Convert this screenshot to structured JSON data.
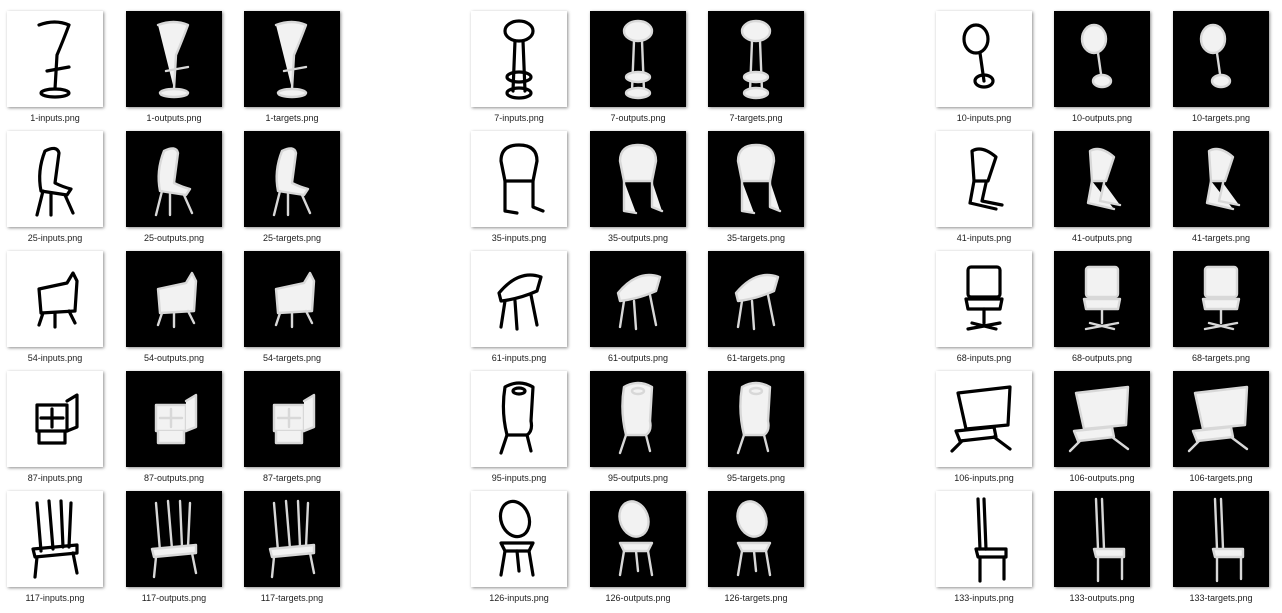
{
  "files": [
    {
      "name": "1-inputs.png",
      "kind": "input",
      "icon": "bar-stool-sketch-icon"
    },
    {
      "name": "1-outputs.png",
      "kind": "render",
      "icon": "bar-stool-render-icon"
    },
    {
      "name": "1-targets.png",
      "kind": "render",
      "icon": "bar-stool-render-icon"
    },
    {
      "name": "7-inputs.png",
      "kind": "input",
      "icon": "round-stool-sketch-icon"
    },
    {
      "name": "7-outputs.png",
      "kind": "render",
      "icon": "round-stool-render-icon"
    },
    {
      "name": "7-targets.png",
      "kind": "render",
      "icon": "round-stool-render-icon"
    },
    {
      "name": "10-inputs.png",
      "kind": "input",
      "icon": "tilted-stool-sketch-icon"
    },
    {
      "name": "10-outputs.png",
      "kind": "render",
      "icon": "tilted-stool-render-icon"
    },
    {
      "name": "10-targets.png",
      "kind": "render",
      "icon": "tilted-stool-render-icon"
    },
    {
      "name": "25-inputs.png",
      "kind": "input",
      "icon": "shell-chair-sketch-icon"
    },
    {
      "name": "25-outputs.png",
      "kind": "render",
      "icon": "shell-chair-render-icon"
    },
    {
      "name": "25-targets.png",
      "kind": "render",
      "icon": "shell-chair-render-icon"
    },
    {
      "name": "35-inputs.png",
      "kind": "input",
      "icon": "sled-chair-sketch-icon"
    },
    {
      "name": "35-outputs.png",
      "kind": "render",
      "icon": "sled-chair-render-icon"
    },
    {
      "name": "35-targets.png",
      "kind": "render",
      "icon": "sled-chair-render-icon"
    },
    {
      "name": "41-inputs.png",
      "kind": "input",
      "icon": "cantilever-chair-sketch-icon"
    },
    {
      "name": "41-outputs.png",
      "kind": "render",
      "icon": "cantilever-chair-render-icon"
    },
    {
      "name": "41-targets.png",
      "kind": "render",
      "icon": "cantilever-chair-render-icon"
    },
    {
      "name": "54-inputs.png",
      "kind": "input",
      "icon": "lounge-chair-sketch-icon"
    },
    {
      "name": "54-outputs.png",
      "kind": "render",
      "icon": "lounge-chair-render-icon"
    },
    {
      "name": "54-targets.png",
      "kind": "render",
      "icon": "lounge-chair-render-icon"
    },
    {
      "name": "61-inputs.png",
      "kind": "input",
      "icon": "bucket-chair-sketch-icon"
    },
    {
      "name": "61-outputs.png",
      "kind": "render",
      "icon": "bucket-chair-render-icon"
    },
    {
      "name": "61-targets.png",
      "kind": "render",
      "icon": "bucket-chair-render-icon"
    },
    {
      "name": "68-inputs.png",
      "kind": "input",
      "icon": "office-chair-sketch-icon"
    },
    {
      "name": "68-outputs.png",
      "kind": "render",
      "icon": "office-chair-render-icon"
    },
    {
      "name": "68-targets.png",
      "kind": "render",
      "icon": "office-chair-render-icon"
    },
    {
      "name": "87-inputs.png",
      "kind": "input",
      "icon": "box-chair-sketch-icon"
    },
    {
      "name": "87-outputs.png",
      "kind": "render",
      "icon": "box-chair-render-icon"
    },
    {
      "name": "87-targets.png",
      "kind": "render",
      "icon": "box-chair-render-icon"
    },
    {
      "name": "95-inputs.png",
      "kind": "input",
      "icon": "handle-chair-sketch-icon"
    },
    {
      "name": "95-outputs.png",
      "kind": "render",
      "icon": "handle-chair-render-icon"
    },
    {
      "name": "95-targets.png",
      "kind": "render",
      "icon": "handle-chair-render-icon"
    },
    {
      "name": "106-inputs.png",
      "kind": "input",
      "icon": "wide-lounge-sketch-icon"
    },
    {
      "name": "106-outputs.png",
      "kind": "render",
      "icon": "wide-lounge-render-icon"
    },
    {
      "name": "106-targets.png",
      "kind": "render",
      "icon": "wide-lounge-render-icon"
    },
    {
      "name": "117-inputs.png",
      "kind": "input",
      "icon": "slat-chair-sketch-icon"
    },
    {
      "name": "117-outputs.png",
      "kind": "render",
      "icon": "slat-chair-render-icon"
    },
    {
      "name": "117-targets.png",
      "kind": "render",
      "icon": "slat-chair-render-icon"
    },
    {
      "name": "126-inputs.png",
      "kind": "input",
      "icon": "oval-back-chair-sketch-icon"
    },
    {
      "name": "126-outputs.png",
      "kind": "render",
      "icon": "oval-back-chair-render-icon"
    },
    {
      "name": "126-targets.png",
      "kind": "render",
      "icon": "oval-back-chair-render-icon"
    },
    {
      "name": "133-inputs.png",
      "kind": "input",
      "icon": "side-chair-sketch-icon"
    },
    {
      "name": "133-outputs.png",
      "kind": "render",
      "icon": "side-chair-render-icon"
    },
    {
      "name": "133-targets.png",
      "kind": "render",
      "icon": "side-chair-render-icon"
    }
  ],
  "colors": {
    "input_background": "#ffffff",
    "render_background": "#000000",
    "sketch_stroke": "#000000",
    "render_fill": "#f2f2f2",
    "label_text": "#222222"
  }
}
